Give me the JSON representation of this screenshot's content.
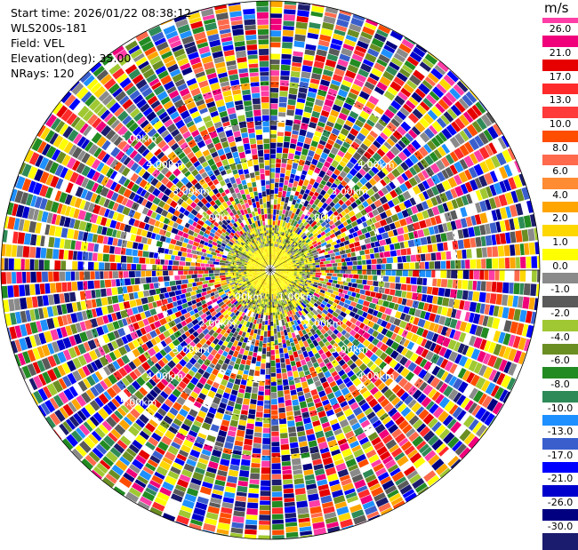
{
  "header": {
    "start_time": "Start time: 2026/01/22 08:38:12",
    "instrument": "WLS200s-181",
    "field": "Field: VEL",
    "elevation": "Elevation(deg): 35.00",
    "nrays": "NRays: 120"
  },
  "colorbar": {
    "unit": "m/s",
    "ticks": [
      "26.0",
      "21.0",
      "17.0",
      "13.0",
      "10.0",
      "8.0",
      "6.0",
      "4.0",
      "2.0",
      "1.0",
      "0.0",
      "-1.0",
      "-2.0",
      "-4.0",
      "-6.0",
      "-8.0",
      "-10.0",
      "-13.0",
      "-17.0",
      "-21.0",
      "-26.0",
      "-30.0"
    ],
    "colors": [
      "#ff3da6",
      "#f0007a",
      "#e60000",
      "#ff2a2a",
      "#ff3a3a",
      "#ff4d00",
      "#ff6a4d",
      "#ff8c33",
      "#ffa500",
      "#ffd700",
      "#ffff00",
      "#8a8a8a",
      "#5a5a5a",
      "#a0c832",
      "#6b8e23",
      "#228b22",
      "#2e8b57",
      "#1e90ff",
      "#3a5fcd",
      "#0000ff",
      "#0000cd",
      "#000080",
      "#1c1c6e"
    ]
  },
  "range_labels": [
    {
      "text": "1.00km",
      "ring": 1,
      "quadrant": "lower-left"
    },
    {
      "text": "1.00km",
      "ring": 1,
      "quadrant": "lower-right"
    },
    {
      "text": "2.00km",
      "ring": 2,
      "quadrant": "upper-left"
    },
    {
      "text": "2.00km",
      "ring": 2,
      "quadrant": "upper-right"
    },
    {
      "text": "2.00km",
      "ring": 2,
      "quadrant": "lower-left"
    },
    {
      "text": "2.00km",
      "ring": 2,
      "quadrant": "lower-right"
    },
    {
      "text": "3.00km",
      "ring": 3,
      "quadrant": "upper-left"
    },
    {
      "text": "3.00km",
      "ring": 3,
      "quadrant": "upper-right"
    },
    {
      "text": "3.00km",
      "ring": 3,
      "quadrant": "lower-left"
    },
    {
      "text": "3.00km",
      "ring": 3,
      "quadrant": "lower-right"
    },
    {
      "text": "4.00km",
      "ring": 4,
      "quadrant": "upper-left"
    },
    {
      "text": "4.00km",
      "ring": 4,
      "quadrant": "upper-right"
    },
    {
      "text": "4.00km",
      "ring": 4,
      "quadrant": "lower-left"
    },
    {
      "text": "4.00km",
      "ring": 4,
      "quadrant": "lower-right"
    },
    {
      "text": "5.00km",
      "ring": 5,
      "quadrant": "upper-left"
    },
    {
      "text": "5.00km",
      "ring": 5,
      "quadrant": "lower-left"
    }
  ],
  "chart_data": {
    "type": "heatmap",
    "projection": "polar-ppi",
    "field": "VEL",
    "unit": "m/s",
    "elevation_deg": 35.0,
    "n_rays": 120,
    "range_rings_km": [
      1,
      2,
      3,
      4,
      5
    ],
    "max_range_km": 7.2,
    "color_scale_min": -30.0,
    "color_scale_max": 26.0,
    "note_ranges_km": {
      "near_field_valid": [
        0,
        1.2
      ],
      "noise_beyond": 1.2
    }
  }
}
